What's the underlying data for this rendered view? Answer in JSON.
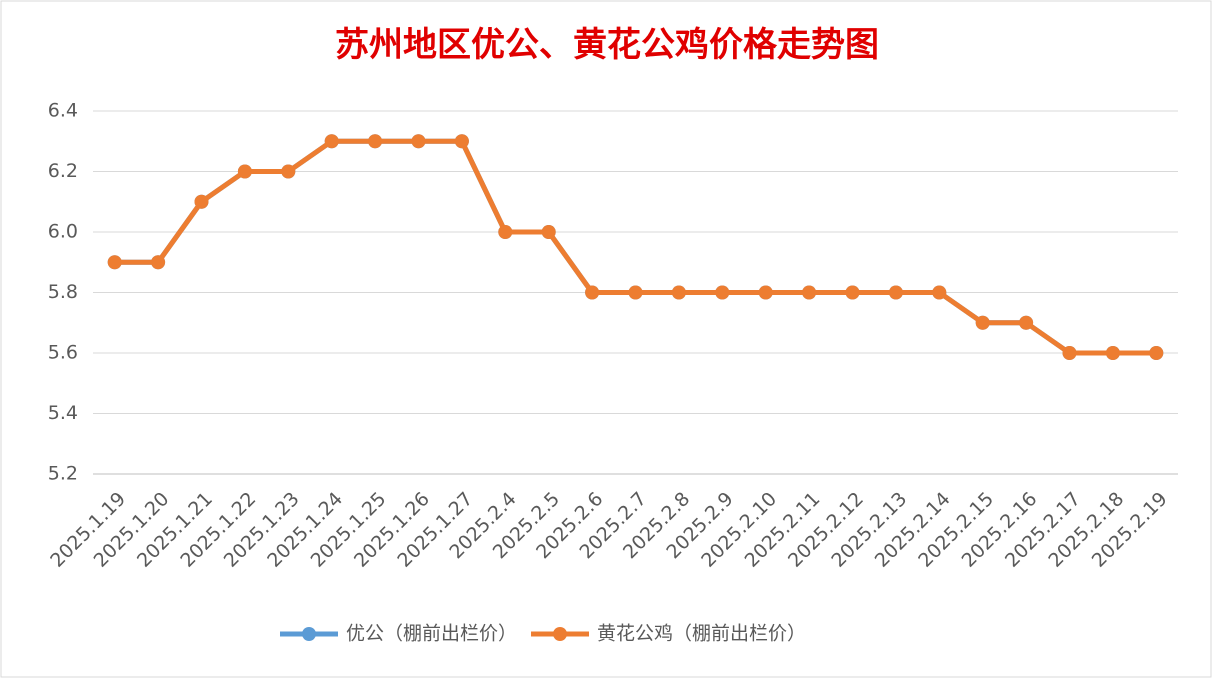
{
  "chart_data": {
    "type": "line",
    "title": "苏州地区优公、黄花公鸡价格走势图",
    "categories": [
      "2025.1.19",
      "2025.1.20",
      "2025.1.21",
      "2025.1.22",
      "2025.1.23",
      "2025.1.24",
      "2025.1.25",
      "2025.1.26",
      "2025.1.27",
      "2025.2.4",
      "2025.2.5",
      "2025.2.6",
      "2025.2.7",
      "2025.2.8",
      "2025.2.9",
      "2025.2.10",
      "2025.2.11",
      "2025.2.12",
      "2025.2.13",
      "2025.2.14",
      "2025.2.15",
      "2025.2.16",
      "2025.2.17",
      "2025.2.18",
      "2025.2.19"
    ],
    "series": [
      {
        "name": "优公（棚前出栏价）",
        "color": "#5b9bd5",
        "values": [
          5.9,
          5.9,
          6.1,
          6.2,
          6.2,
          6.3,
          6.3,
          6.3,
          6.3,
          6.0,
          6.0,
          5.8,
          5.8,
          5.8,
          5.8,
          5.8,
          5.8,
          5.8,
          5.8,
          5.8,
          5.7,
          5.7,
          5.6,
          5.6,
          5.6
        ]
      },
      {
        "name": "黄花公鸡（棚前出栏价）",
        "color": "#ed7d31",
        "values": [
          5.9,
          5.9,
          6.1,
          6.2,
          6.2,
          6.3,
          6.3,
          6.3,
          6.3,
          6.0,
          6.0,
          5.8,
          5.8,
          5.8,
          5.8,
          5.8,
          5.8,
          5.8,
          5.8,
          5.8,
          5.7,
          5.7,
          5.6,
          5.6,
          5.6
        ]
      }
    ],
    "ylim": [
      5.2,
      6.4
    ],
    "yticks": [
      5.2,
      5.4,
      5.6,
      5.8,
      {
        "value": 6,
        "label": "6.0"
      },
      6.2,
      6.4
    ],
    "grid": true,
    "legend": "bottom"
  }
}
